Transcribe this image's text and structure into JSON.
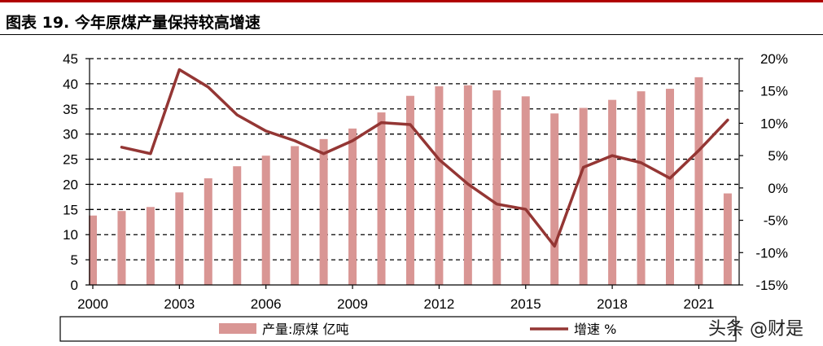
{
  "header": {
    "title": "图表 19. 今年原煤产量保持较高增速"
  },
  "watermark": "头条 @财是",
  "chart_data": {
    "type": "bar+line",
    "years": [
      2000,
      2001,
      2002,
      2003,
      2004,
      2005,
      2006,
      2007,
      2008,
      2009,
      2010,
      2011,
      2012,
      2013,
      2014,
      2015,
      2016,
      2017,
      2018,
      2019,
      2020,
      2021,
      2022
    ],
    "x_tick_labels": [
      "2000",
      "2003",
      "2006",
      "2009",
      "2012",
      "2015",
      "2018",
      "2021"
    ],
    "y_left": {
      "min": 0,
      "max": 45,
      "step": 5,
      "tick_labels": [
        "0",
        "5",
        "10",
        "15",
        "20",
        "25",
        "30",
        "35",
        "40",
        "45"
      ]
    },
    "y_right": {
      "min": -15,
      "max": 20,
      "step": 5,
      "tick_labels": [
        "-15%",
        "-10%",
        "-5%",
        "0%",
        "5%",
        "10%",
        "15%",
        "20%"
      ]
    },
    "grid": "horizontal dashed",
    "legend_position": "bottom",
    "series": [
      {
        "name": "产量:原煤 亿吨",
        "type": "bar",
        "axis": "left",
        "color": "#d99694",
        "values": [
          13.8,
          14.7,
          15.5,
          18.4,
          21.2,
          23.6,
          25.7,
          27.6,
          29.0,
          31.1,
          34.3,
          37.6,
          39.5,
          39.7,
          38.7,
          37.5,
          34.1,
          35.2,
          36.8,
          38.5,
          39.0,
          41.3,
          18.2
        ]
      },
      {
        "name": "增速 %",
        "type": "line",
        "axis": "right",
        "color": "#943634",
        "values": [
          null,
          6.3,
          5.3,
          18.3,
          15.6,
          11.3,
          8.8,
          7.3,
          5.3,
          7.3,
          10.1,
          9.8,
          4.4,
          0.6,
          -2.5,
          -3.3,
          -9.0,
          3.2,
          5.0,
          3.9,
          1.5,
          5.8,
          10.5
        ]
      }
    ]
  }
}
